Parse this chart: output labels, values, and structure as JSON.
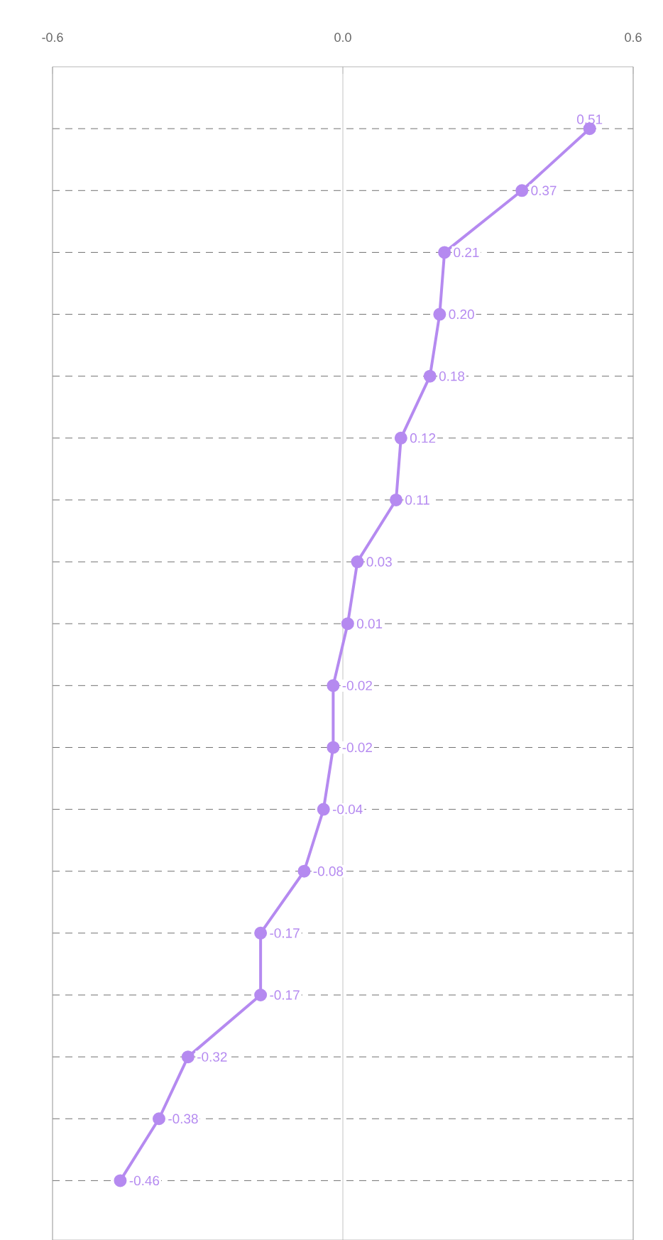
{
  "chart_data": {
    "type": "line",
    "orientation": "horizontal",
    "categories": [
      null,
      null,
      null,
      null,
      null,
      null,
      null,
      null,
      null,
      null,
      null,
      null,
      null,
      null,
      null,
      null,
      null,
      null
    ],
    "series": [
      {
        "color": "#b58af0",
        "values": [
          0.51,
          0.37,
          0.21,
          0.2,
          0.18,
          0.12,
          0.11,
          0.03,
          0.01,
          -0.02,
          -0.02,
          -0.04,
          -0.08,
          -0.17,
          -0.17,
          -0.32,
          -0.38,
          -0.46
        ],
        "value_labels": [
          "0.51",
          "0.37",
          "0.21",
          "0.20",
          "0.18",
          "0.12",
          "0.11",
          "0.03",
          "0.01",
          "-0.02",
          "-0.02",
          "-0.04",
          "-0.08",
          "-0.17",
          "-0.17",
          "-0.32",
          "-0.38",
          "-0.46"
        ]
      }
    ],
    "xlim": [
      -0.6,
      0.6
    ],
    "xticks": [
      -0.6,
      {
        "value": 0,
        "label": "0.0"
      },
      0.6
    ],
    "tick_labels": "x",
    "grid": true,
    "marker": "circle",
    "line_style": "solid"
  }
}
